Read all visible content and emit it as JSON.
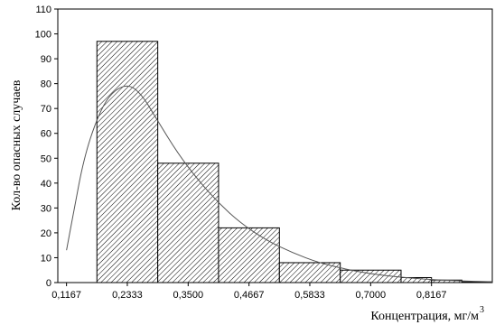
{
  "chart_data": {
    "type": "bar",
    "subtype": "histogram",
    "bins": [
      {
        "x0": 0.175,
        "x1": 0.2917,
        "value": 97
      },
      {
        "x0": 0.2917,
        "x1": 0.4083,
        "value": 48
      },
      {
        "x0": 0.4083,
        "x1": 0.525,
        "value": 22
      },
      {
        "x0": 0.525,
        "x1": 0.6417,
        "value": 8
      },
      {
        "x0": 0.6417,
        "x1": 0.7583,
        "value": 5
      },
      {
        "x0": 0.7583,
        "x1": 0.8167,
        "value": 2
      },
      {
        "x0": 0.8167,
        "x1": 0.875,
        "value": 1
      },
      {
        "x0": 0.875,
        "x1": 0.9333,
        "value": 0.3
      }
    ],
    "density_curve": {
      "x": [
        0.1167,
        0.13,
        0.15,
        0.175,
        0.2,
        0.2333,
        0.26,
        0.2917,
        0.33,
        0.37,
        0.4083,
        0.45,
        0.5,
        0.55,
        0.6,
        0.65,
        0.7,
        0.75,
        0.8,
        0.85,
        0.9,
        0.9333
      ],
      "y": [
        13,
        28,
        50,
        66,
        76,
        80,
        76,
        65,
        52,
        41,
        32,
        24,
        17,
        12,
        8,
        5.5,
        3.5,
        2.3,
        1.4,
        0.9,
        0.5,
        0.3
      ]
    },
    "xlim": [
      0.1,
      0.9333
    ],
    "ylim": [
      0,
      110
    ],
    "x_ticks": [
      {
        "value": 0.1167,
        "label": "0,1167"
      },
      {
        "value": 0.2333,
        "label": "0,2333"
      },
      {
        "value": 0.35,
        "label": "0,3500"
      },
      {
        "value": 0.4667,
        "label": "0,4667"
      },
      {
        "value": 0.5833,
        "label": "0,5833"
      },
      {
        "value": 0.7,
        "label": "0,7000"
      },
      {
        "value": 0.8167,
        "label": "0,8167"
      }
    ],
    "y_ticks": [
      0,
      10,
      20,
      30,
      40,
      50,
      60,
      70,
      80,
      90,
      100,
      110
    ],
    "xlabel": "Концентрация, мг/м",
    "xlabel_sup": "3",
    "ylabel": "Кол-во опасных случаев",
    "grid": false,
    "colors": {
      "bar_fill": "#ffffff",
      "hatch": "#000000",
      "curve": "#555555",
      "axis": "#000000"
    }
  }
}
